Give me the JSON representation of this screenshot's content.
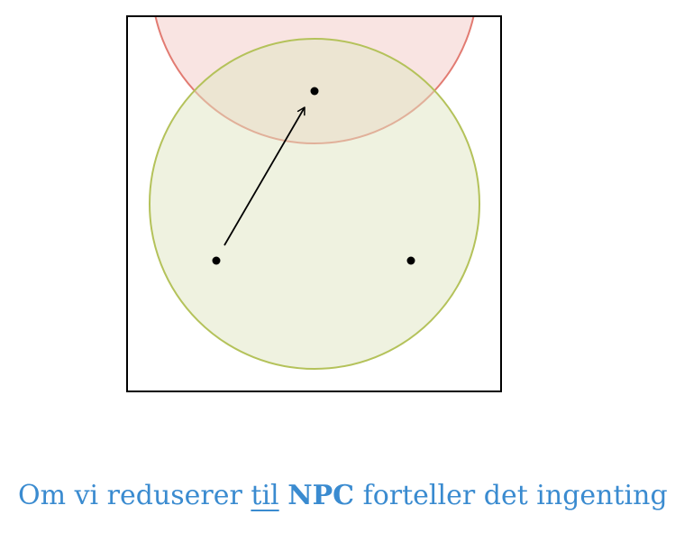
{
  "diagram": {
    "frame": {
      "stroke_color": "#000000"
    },
    "circles": [
      {
        "name": "red-region-circle",
        "fill_color": "#f4c9c5",
        "stroke_color": "#e27b72"
      },
      {
        "name": "green-region-circle",
        "fill_color": "#dfe6c2",
        "stroke_color": "#b4c25a"
      }
    ],
    "points": [
      {
        "name": "top-point"
      },
      {
        "name": "bottom-left-point"
      },
      {
        "name": "bottom-right-point"
      }
    ],
    "arrow": {
      "from": "bottom-left-point",
      "to": "top-point",
      "color": "#000000"
    }
  },
  "caption": {
    "part1": "Om vi reduserer ",
    "part2": "til",
    "part3": " ",
    "part4": "NPC",
    "part5": " forteller det ingenting",
    "color": "#3a8bd0"
  }
}
